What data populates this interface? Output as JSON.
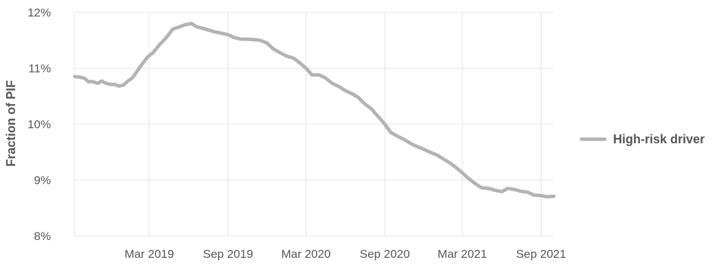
{
  "chart_data": {
    "type": "line",
    "title": "",
    "xlabel": "",
    "ylabel": "Fraction of PIF",
    "yticks": [
      "8%",
      "9%",
      "10%",
      "11%",
      "12%"
    ],
    "ylim": [
      8,
      12
    ],
    "xticks": [
      "Mar 2019",
      "Sep 2019",
      "Mar 2020",
      "Sep 2020",
      "Mar 2021",
      "Sep 2021"
    ],
    "xlim": [
      "2018-09-07",
      "2021-10-01"
    ],
    "grid": true,
    "legend_position": "right",
    "series": [
      {
        "name": "High-risk driver",
        "color": "#b3b3b3",
        "points": [
          [
            "2018-09-08",
            10.85
          ],
          [
            "2018-09-20",
            10.84
          ],
          [
            "2018-10-01",
            10.82
          ],
          [
            "2018-10-10",
            10.76
          ],
          [
            "2018-10-20",
            10.76
          ],
          [
            "2018-11-01",
            10.73
          ],
          [
            "2018-11-10",
            10.77
          ],
          [
            "2018-11-20",
            10.73
          ],
          [
            "2018-12-01",
            10.71
          ],
          [
            "2018-12-10",
            10.71
          ],
          [
            "2018-12-20",
            10.68
          ],
          [
            "2018-12-31",
            10.7
          ],
          [
            "2019-01-10",
            10.77
          ],
          [
            "2019-01-20",
            10.82
          ],
          [
            "2019-02-01",
            10.95
          ],
          [
            "2019-02-10",
            11.05
          ],
          [
            "2019-02-25",
            11.2
          ],
          [
            "2019-03-10",
            11.28
          ],
          [
            "2019-03-25",
            11.42
          ],
          [
            "2019-04-10",
            11.55
          ],
          [
            "2019-04-25",
            11.7
          ],
          [
            "2019-05-10",
            11.74
          ],
          [
            "2019-05-25",
            11.78
          ],
          [
            "2019-06-08",
            11.8
          ],
          [
            "2019-06-20",
            11.74
          ],
          [
            "2019-07-01",
            11.72
          ],
          [
            "2019-07-15",
            11.69
          ],
          [
            "2019-08-01",
            11.65
          ],
          [
            "2019-08-15",
            11.63
          ],
          [
            "2019-09-01",
            11.6
          ],
          [
            "2019-09-15",
            11.55
          ],
          [
            "2019-10-01",
            11.52
          ],
          [
            "2019-10-15",
            11.52
          ],
          [
            "2019-11-01",
            11.51
          ],
          [
            "2019-11-15",
            11.5
          ],
          [
            "2019-12-01",
            11.45
          ],
          [
            "2019-12-15",
            11.35
          ],
          [
            "2019-12-31",
            11.28
          ],
          [
            "2020-01-15",
            11.22
          ],
          [
            "2020-02-01",
            11.18
          ],
          [
            "2020-02-15",
            11.1
          ],
          [
            "2020-03-01",
            11.0
          ],
          [
            "2020-03-15",
            10.88
          ],
          [
            "2020-04-01",
            10.88
          ],
          [
            "2020-04-15",
            10.83
          ],
          [
            "2020-05-01",
            10.73
          ],
          [
            "2020-05-15",
            10.68
          ],
          [
            "2020-06-01",
            10.6
          ],
          [
            "2020-06-15",
            10.55
          ],
          [
            "2020-07-01",
            10.48
          ],
          [
            "2020-07-15",
            10.37
          ],
          [
            "2020-08-01",
            10.27
          ],
          [
            "2020-08-15",
            10.15
          ],
          [
            "2020-09-01",
            10.0
          ],
          [
            "2020-09-15",
            9.85
          ],
          [
            "2020-10-01",
            9.78
          ],
          [
            "2020-10-15",
            9.73
          ],
          [
            "2020-11-01",
            9.65
          ],
          [
            "2020-11-15",
            9.6
          ],
          [
            "2020-12-01",
            9.55
          ],
          [
            "2020-12-15",
            9.5
          ],
          [
            "2020-12-31",
            9.45
          ],
          [
            "2021-01-15",
            9.38
          ],
          [
            "2021-02-01",
            9.3
          ],
          [
            "2021-02-15",
            9.22
          ],
          [
            "2021-03-01",
            9.13
          ],
          [
            "2021-03-15",
            9.03
          ],
          [
            "2021-04-01",
            8.93
          ],
          [
            "2021-04-15",
            8.86
          ],
          [
            "2021-05-01",
            8.85
          ],
          [
            "2021-05-15",
            8.82
          ],
          [
            "2021-06-01",
            8.79
          ],
          [
            "2021-06-15",
            8.85
          ],
          [
            "2021-07-01",
            8.83
          ],
          [
            "2021-07-15",
            8.8
          ],
          [
            "2021-08-01",
            8.78
          ],
          [
            "2021-08-15",
            8.73
          ],
          [
            "2021-09-01",
            8.72
          ],
          [
            "2021-09-15",
            8.7
          ],
          [
            "2021-10-01",
            8.71
          ]
        ]
      }
    ]
  }
}
